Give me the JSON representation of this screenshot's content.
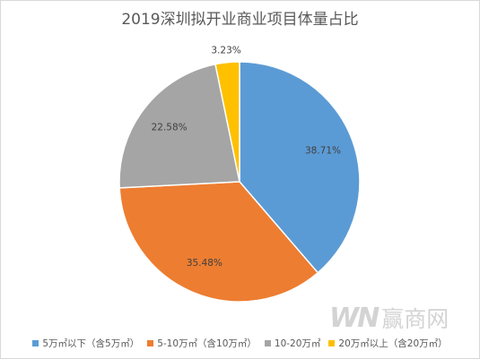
{
  "chart_data": {
    "type": "pie",
    "title": "2019深圳拟开业商业项目体量占比",
    "start_angle_deg": 0,
    "clockwise": true,
    "legend": "bottom",
    "slices": [
      {
        "label": "5万㎡以下（含5万㎡）",
        "value": 38.71,
        "display": "38.71%",
        "color": "#5B9BD5"
      },
      {
        "label": "5-10万㎡（含10万㎡）",
        "value": 35.48,
        "display": "35.48%",
        "color": "#ED7D31"
      },
      {
        "label": "10-20万㎡",
        "value": 22.58,
        "display": "22.58%",
        "color": "#A5A5A5"
      },
      {
        "label": "20万㎡以上（含20万㎡）",
        "value": 3.23,
        "display": "3.23%",
        "color": "#FFC000"
      }
    ]
  },
  "watermark": {
    "logo": "WN",
    "text": "赢商网"
  }
}
